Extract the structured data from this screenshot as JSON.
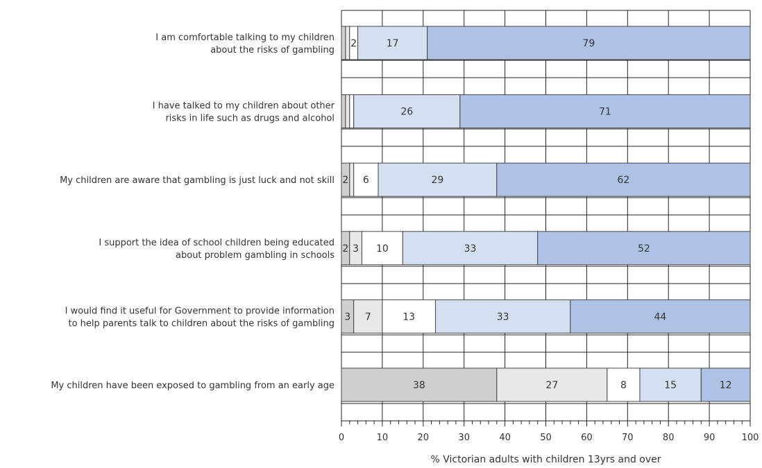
{
  "chart_data": {
    "type": "bar",
    "orientation": "horizontal",
    "stacked": true,
    "categories": [
      [
        "I am comfortable talking to my children",
        "about the risks of gambling"
      ],
      [
        "I have talked to my children about other",
        "risks in life such as drugs and alcohol"
      ],
      [
        "My children are aware that gambling is just luck and not skill"
      ],
      [
        "I support the idea of school children being educated",
        "about problem gambling in schools"
      ],
      [
        "I would find it useful for Government to provide information",
        "to help parents talk to children about the risks of gambling"
      ],
      [
        "My children have been exposed to gambling from an early age"
      ]
    ],
    "series": [
      {
        "values": [
          1,
          1,
          2,
          2,
          3,
          38
        ],
        "labels": [
          "1",
          "1",
          "2",
          "2",
          "3",
          "38"
        ],
        "color": "#cfcfcf"
      },
      {
        "values": [
          1,
          1,
          1,
          3,
          7,
          27
        ],
        "labels": [
          "1",
          "1",
          "1",
          "3",
          "7",
          "27"
        ],
        "color": "#e8e8e8"
      },
      {
        "values": [
          2,
          1,
          6,
          10,
          13,
          8
        ],
        "labels": [
          "2",
          "1",
          "6",
          "10",
          "13",
          "8"
        ],
        "color": "#ffffff"
      },
      {
        "values": [
          17,
          26,
          29,
          33,
          33,
          15
        ],
        "labels": [
          "17",
          "26",
          "29",
          "33",
          "33",
          "15"
        ],
        "color": "#d4e0f1"
      },
      {
        "values": [
          79,
          71,
          62,
          52,
          44,
          12
        ],
        "labels": [
          "79",
          "71",
          "62",
          "52",
          "44",
          "12"
        ],
        "color": "#aec2e3"
      }
    ],
    "xlim": [
      0,
      100
    ],
    "xticks": [
      0,
      10,
      20,
      30,
      40,
      50,
      60,
      70,
      80,
      90,
      100
    ],
    "xlabel": "% Victorian adults with children 13yrs and over",
    "grid": true
  }
}
